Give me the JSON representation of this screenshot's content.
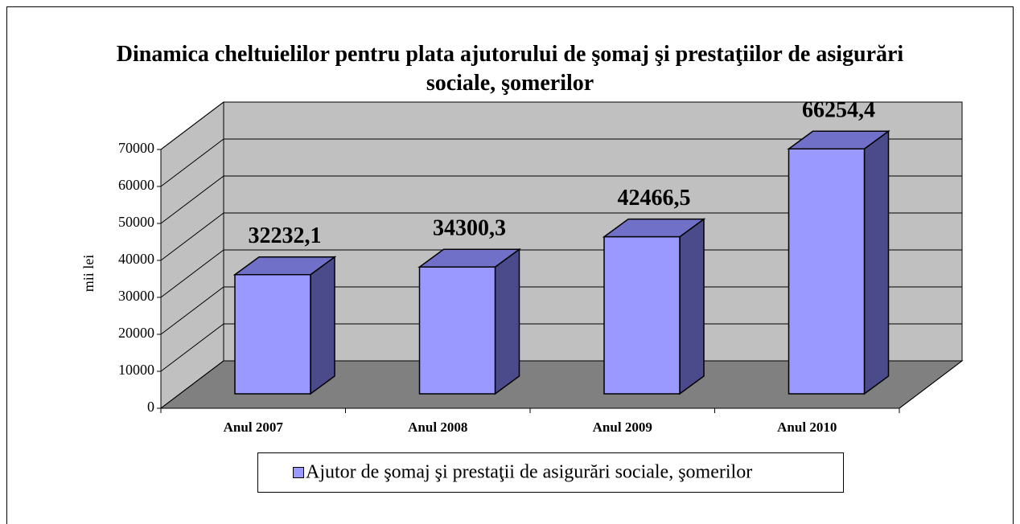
{
  "chart_data": {
    "type": "bar3d",
    "title": "Dinamica cheltuielilor pentru plata ajutorului de şomaj şi prestaţiilor de asigurări sociale, şomerilor",
    "y_label": "mii lei",
    "categories": [
      "Anul 2007",
      "Anul 2008",
      "Anul 2009",
      "Anul 2010"
    ],
    "series": [
      {
        "name": "Ajutor de şomaj şi prestaţii de asigurări sociale, şomerilor",
        "color": "#9999ff",
        "values": [
          32232.1,
          34300.3,
          42466.5,
          66254.4
        ],
        "value_labels": [
          "32232,1",
          "34300,3",
          "42466,5",
          "66254,4"
        ]
      }
    ],
    "ylim": [
      0,
      70000
    ],
    "yticks": [
      0,
      10000,
      20000,
      30000,
      40000,
      50000,
      60000,
      70000
    ],
    "grid": true
  }
}
